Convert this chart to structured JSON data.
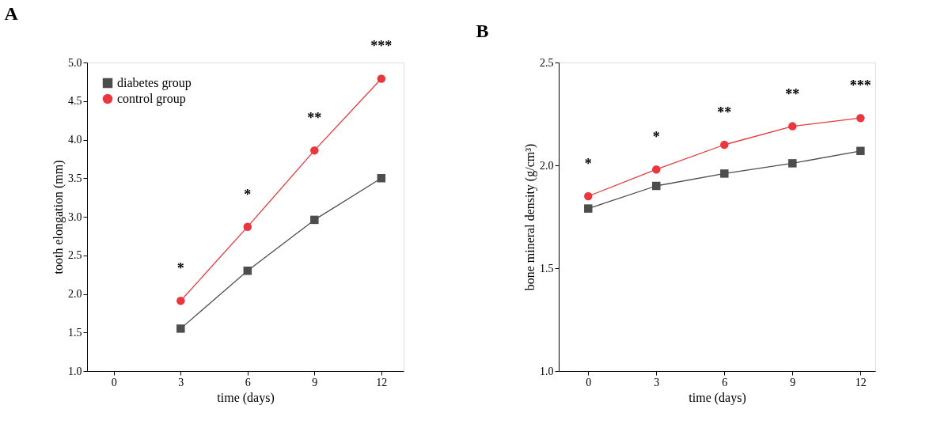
{
  "chart_data": [
    {
      "type": "line",
      "title": "A",
      "xlabel": "time (days)",
      "ylabel": "tooth elongation (mm)",
      "x": [
        3,
        6,
        9,
        12
      ],
      "series": [
        {
          "name": "diabetes group",
          "color": "#4d4d4d",
          "marker": "square",
          "values": [
            1.55,
            2.3,
            2.96,
            3.5
          ]
        },
        {
          "name": "control group",
          "color": "#e8383d",
          "marker": "circle",
          "values": [
            1.91,
            2.87,
            3.86,
            4.79
          ]
        }
      ],
      "xlim": [
        -1.2,
        13
      ],
      "xticks": [
        0,
        3,
        6,
        9,
        12
      ],
      "ylim": [
        1.0,
        5.0
      ],
      "yticks": [
        {
          "value": 1.0,
          "label": "1.0"
        },
        {
          "value": 1.5,
          "label": "1.5"
        },
        {
          "value": 2.0,
          "label": "2.0"
        },
        {
          "value": 2.5,
          "label": "2.5"
        },
        {
          "value": 3.0,
          "label": "3.0"
        },
        {
          "value": 3.5,
          "label": "3.5"
        },
        {
          "value": 4.0,
          "label": "4.0"
        },
        {
          "value": 4.5,
          "label": "4.5"
        },
        {
          "value": 5.0,
          "label": "5.0"
        }
      ],
      "annotations": [
        "*",
        "*",
        "**",
        "***"
      ],
      "legend": "top left",
      "grid": false,
      "line_style": "solid"
    },
    {
      "type": "line",
      "title": "B",
      "xlabel": "time (days)",
      "ylabel": "bone mineral density (g/cm³)",
      "x": [
        0,
        3,
        6,
        9,
        12
      ],
      "series": [
        {
          "name": "diabetes group",
          "color": "#4d4d4d",
          "marker": "square",
          "values": [
            1.79,
            1.9,
            1.96,
            2.01,
            2.07
          ]
        },
        {
          "name": "control group",
          "color": "#e8383d",
          "marker": "circle",
          "values": [
            1.85,
            1.98,
            2.1,
            2.19,
            2.23
          ]
        }
      ],
      "xlim": [
        -1.3,
        12.65
      ],
      "xticks": [
        0,
        3,
        6,
        9,
        12
      ],
      "ylim": [
        1.0,
        2.5
      ],
      "yticks": [
        {
          "value": 1.0,
          "label": "1.0"
        },
        {
          "value": 1.5,
          "label": "1.5"
        },
        {
          "value": 2.0,
          "label": "2.0"
        },
        {
          "value": 2.5,
          "label": "2.5"
        }
      ],
      "annotations": [
        "*",
        "*",
        "**",
        "**",
        "***"
      ],
      "legend": "top left",
      "grid": false,
      "line_style": "solid"
    }
  ]
}
